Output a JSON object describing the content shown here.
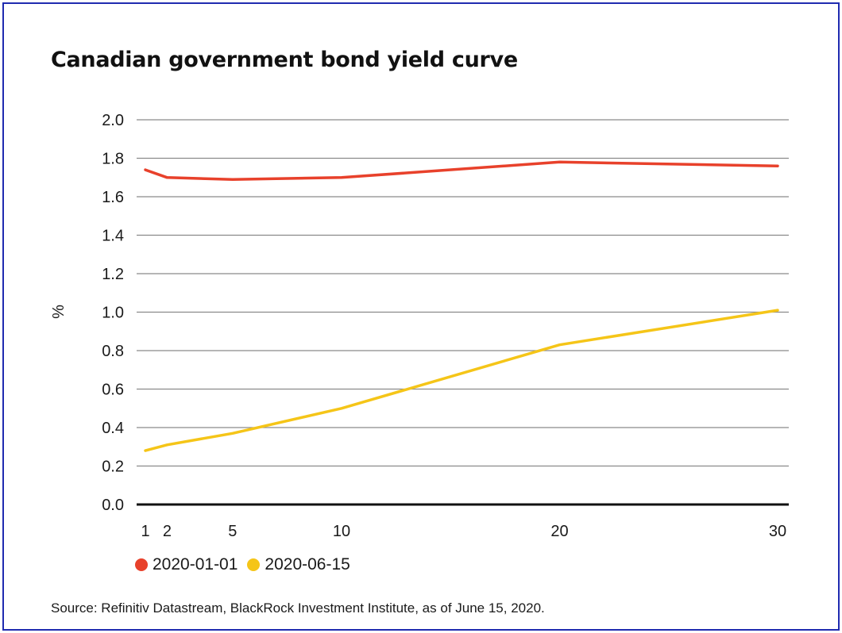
{
  "chart_data": {
    "type": "line",
    "title": "Canadian government bond yield curve",
    "ylabel": "%",
    "xlabel": "",
    "ylim": [
      0,
      2.0
    ],
    "yticks": [
      "0.0",
      "0.2",
      "0.4",
      "0.6",
      "0.8",
      "1.0",
      "1.2",
      "1.4",
      "1.6",
      "1.8",
      "2.0"
    ],
    "xlim": [
      1,
      30
    ],
    "xticks": [
      "1",
      "2",
      "5",
      "10",
      "20",
      "30"
    ],
    "grid": true,
    "legend_placement": "bottom-left",
    "series": [
      {
        "name": "2020-01-01",
        "color": "#e8412b",
        "x": [
          1,
          2,
          5,
          10,
          20,
          30
        ],
        "values": [
          1.74,
          1.7,
          1.69,
          1.7,
          1.78,
          1.76
        ]
      },
      {
        "name": "2020-06-15",
        "color": "#f5c518",
        "x": [
          1,
          2,
          5,
          10,
          20,
          30
        ],
        "values": [
          0.28,
          0.31,
          0.37,
          0.5,
          0.83,
          1.01
        ]
      }
    ]
  },
  "source": "Source: Refinitiv Datastream, BlackRock Investment Institute, as of June 15, 2020."
}
